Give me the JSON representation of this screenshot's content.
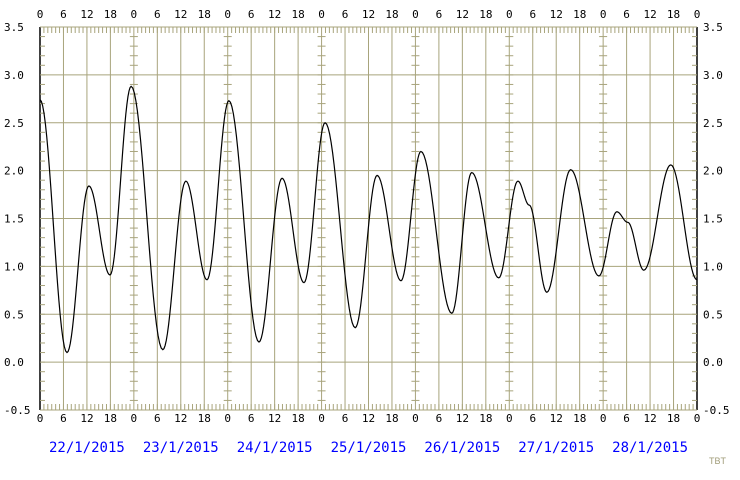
{
  "chart_data": {
    "type": "line",
    "title": "",
    "xlabel": "",
    "ylabel": "",
    "ylim": [
      -0.5,
      3.5
    ],
    "yticks": [
      "3.5",
      "3.0",
      "2.5",
      "2.0",
      "1.5",
      "1.0",
      "0.5",
      "0.0",
      "-0.5"
    ],
    "hour_ticks": [
      "0",
      "6",
      "12",
      "18"
    ],
    "days": [
      "22/1/2015",
      "23/1/2015",
      "24/1/2015",
      "25/1/2015",
      "26/1/2015",
      "27/1/2015",
      "28/1/2015"
    ],
    "grid": true,
    "line_color": "#000000",
    "grid_color": "#a8a47c",
    "date_color": "#0000ff",
    "series": [
      {
        "points": [
          [
            "2015-01-22T00:00",
            2.74
          ],
          [
            "2015-01-22T06:54",
            0.1
          ],
          [
            "2015-01-22T12:30",
            1.84
          ],
          [
            "2015-01-22T17:54",
            0.91
          ],
          [
            "2015-01-22T23:18",
            2.88
          ],
          [
            "2015-01-23T07:24",
            0.13
          ],
          [
            "2015-01-23T13:18",
            1.89
          ],
          [
            "2015-01-23T18:42",
            0.86
          ],
          [
            "2015-01-24T00:18",
            2.73
          ],
          [
            "2015-01-24T08:00",
            0.21
          ],
          [
            "2015-01-24T13:54",
            1.92
          ],
          [
            "2015-01-24T19:30",
            0.83
          ],
          [
            "2015-01-25T00:54",
            2.5
          ],
          [
            "2015-01-25T08:36",
            0.36
          ],
          [
            "2015-01-25T14:12",
            1.95
          ],
          [
            "2015-01-25T20:18",
            0.85
          ],
          [
            "2015-01-26T01:24",
            2.2
          ],
          [
            "2015-01-26T09:18",
            0.51
          ],
          [
            "2015-01-26T14:24",
            1.98
          ],
          [
            "2015-01-26T21:18",
            0.88
          ],
          [
            "2015-01-27T02:12",
            1.89
          ],
          [
            "2015-01-27T05:06",
            1.64
          ],
          [
            "2015-01-27T09:36",
            0.73
          ],
          [
            "2015-01-27T15:42",
            2.01
          ],
          [
            "2015-01-27T22:54",
            0.9
          ],
          [
            "2015-01-28T03:30",
            1.57
          ],
          [
            "2015-01-28T06:18",
            1.46
          ],
          [
            "2015-01-28T10:24",
            0.96
          ],
          [
            "2015-01-28T17:18",
            2.06
          ],
          [
            "2015-01-29T00:00",
            0.86
          ]
        ]
      }
    ]
  },
  "credit": "TBT"
}
